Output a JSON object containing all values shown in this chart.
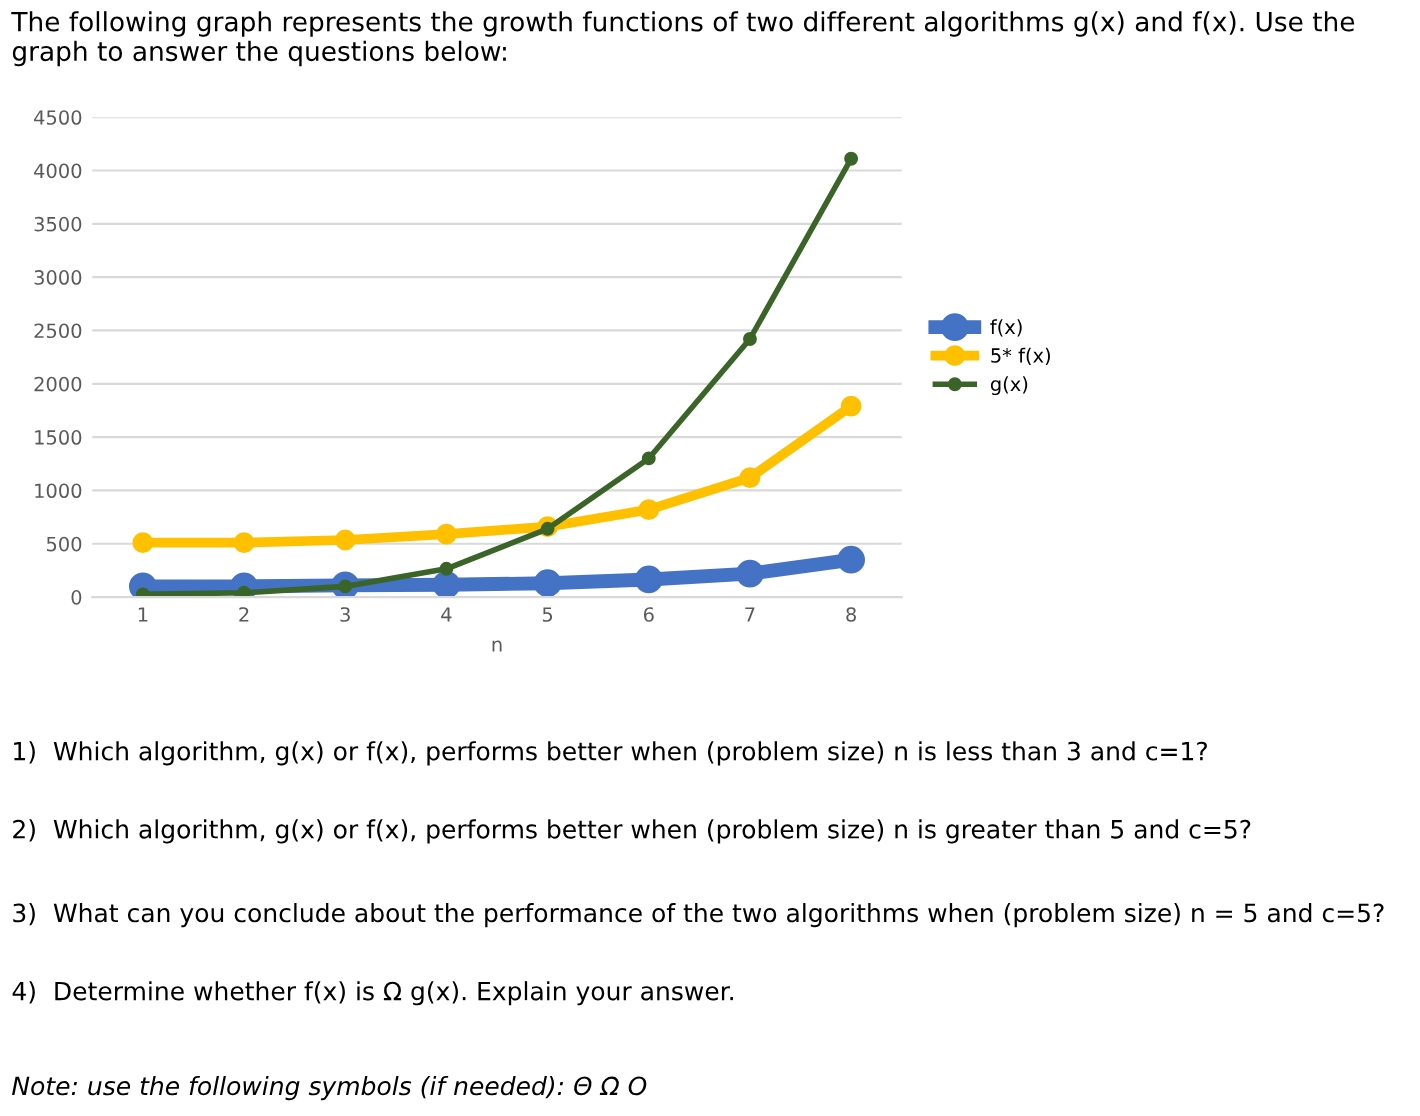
{
  "chart_data": {
    "type": "line",
    "title": "The following graph represents the growth functions of two different algorithms g(x) and f(x). Use the graph to answer the questions below:",
    "xlabel": "n",
    "categories": [
      "1",
      "2",
      "3",
      "4",
      "5",
      "6",
      "7",
      "8"
    ],
    "series": [
      {
        "name": "f(x)",
        "color": "#4472c4",
        "values": [
          100,
          100,
          110,
          115,
          130,
          165,
          220,
          350
        ]
      },
      {
        "name": "5* f(x)",
        "color": "#ffc000",
        "values": [
          510,
          510,
          535,
          590,
          660,
          820,
          1120,
          1790
        ]
      },
      {
        "name": "g(x)",
        "color": "#3a6428",
        "values": [
          25,
          40,
          100,
          265,
          640,
          1300,
          2420,
          4110
        ]
      }
    ],
    "ylim": [
      0,
      4500
    ],
    "yticks": [
      0,
      500,
      1000,
      1500,
      2000,
      2500,
      3000,
      3500,
      4000,
      4500
    ],
    "grid": "y",
    "legend": "right",
    "marker": "circle",
    "line_style": "solid",
    "annotations": [
      "1)  Which algorithm, g(x) or f(x), performs better when (problem size) n is less than 3 and c=1?",
      "2)  Which algorithm, g(x) or f(x), performs better when (problem size) n is greater than 5 and c=5?",
      "3)  What can you conclude about the performance of the two algorithms when (problem size) n = 5 and c=5?",
      "4)  Determine whether f(x) is Ω g(x). Explain your answer.",
      "Note: use the following symbols (if needed): Θ Ω O"
    ]
  }
}
